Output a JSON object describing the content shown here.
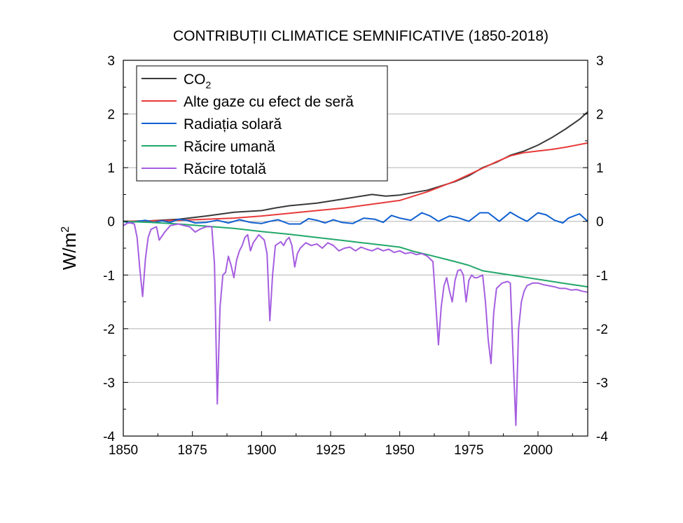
{
  "chart_data": {
    "type": "line",
    "title": "CONTRIBUȚII CLIMATICE SEMNIFICATIVE (1850-2018)",
    "xlabel": "",
    "ylabel": "W/m",
    "ylabel_sup": "2",
    "xlim": [
      1850,
      2018
    ],
    "ylim": [
      -4,
      3
    ],
    "x_ticks": [
      "1850",
      "1875",
      "1900",
      "1925",
      "1950",
      "1975",
      "2000"
    ],
    "y_ticks": [
      "-4",
      "-3",
      "-2",
      "-1",
      "0",
      "1",
      "2",
      "3"
    ],
    "grid": "horizontal",
    "legend_position": "top-left",
    "series": [
      {
        "name": "CO",
        "name_sub": "2",
        "color": "#3a3a3a",
        "points": [
          [
            1850,
            0
          ],
          [
            1860,
            0.01
          ],
          [
            1870,
            0.04
          ],
          [
            1880,
            0.1
          ],
          [
            1890,
            0.17
          ],
          [
            1900,
            0.2
          ],
          [
            1905,
            0.25
          ],
          [
            1910,
            0.29
          ],
          [
            1920,
            0.34
          ],
          [
            1930,
            0.42
          ],
          [
            1940,
            0.5
          ],
          [
            1945,
            0.47
          ],
          [
            1950,
            0.49
          ],
          [
            1960,
            0.58
          ],
          [
            1970,
            0.74
          ],
          [
            1975,
            0.85
          ],
          [
            1980,
            1.0
          ],
          [
            1985,
            1.1
          ],
          [
            1990,
            1.23
          ],
          [
            1995,
            1.31
          ],
          [
            2000,
            1.42
          ],
          [
            2005,
            1.56
          ],
          [
            2010,
            1.72
          ],
          [
            2015,
            1.9
          ],
          [
            2018,
            2.04
          ]
        ]
      },
      {
        "name": "Alte gaze cu efect de seră",
        "color": "#e83a3a",
        "points": [
          [
            1850,
            0
          ],
          [
            1870,
            0.02
          ],
          [
            1890,
            0.06
          ],
          [
            1900,
            0.1
          ],
          [
            1910,
            0.15
          ],
          [
            1920,
            0.2
          ],
          [
            1930,
            0.25
          ],
          [
            1940,
            0.32
          ],
          [
            1950,
            0.39
          ],
          [
            1960,
            0.55
          ],
          [
            1970,
            0.75
          ],
          [
            1975,
            0.87
          ],
          [
            1980,
            0.99
          ],
          [
            1985,
            1.11
          ],
          [
            1990,
            1.22
          ],
          [
            1995,
            1.28
          ],
          [
            2000,
            1.31
          ],
          [
            2005,
            1.34
          ],
          [
            2010,
            1.38
          ],
          [
            2015,
            1.43
          ],
          [
            2018,
            1.46
          ]
        ]
      },
      {
        "name": "Radiația solară",
        "color": "#1060d0",
        "points": [
          [
            1850,
            0
          ],
          [
            1852,
            -0.03
          ],
          [
            1855,
            0
          ],
          [
            1858,
            0.02
          ],
          [
            1861,
            -0.02
          ],
          [
            1864,
            0.01
          ],
          [
            1867,
            -0.02
          ],
          [
            1870,
            0.04
          ],
          [
            1873,
            0.02
          ],
          [
            1876,
            -0.03
          ],
          [
            1880,
            -0.02
          ],
          [
            1884,
            0.02
          ],
          [
            1888,
            -0.03
          ],
          [
            1892,
            0.03
          ],
          [
            1896,
            -0.02
          ],
          [
            1900,
            -0.04
          ],
          [
            1903,
            0.0
          ],
          [
            1906,
            0.03
          ],
          [
            1910,
            -0.05
          ],
          [
            1914,
            -0.05
          ],
          [
            1917,
            0.05
          ],
          [
            1920,
            0.02
          ],
          [
            1923,
            -0.03
          ],
          [
            1926,
            0.03
          ],
          [
            1929,
            -0.02
          ],
          [
            1933,
            -0.04
          ],
          [
            1937,
            0.06
          ],
          [
            1941,
            0.04
          ],
          [
            1944,
            -0.02
          ],
          [
            1947,
            0.11
          ],
          [
            1950,
            0.06
          ],
          [
            1954,
            0.02
          ],
          [
            1958,
            0.16
          ],
          [
            1961,
            0.1
          ],
          [
            1964,
            0.0
          ],
          [
            1968,
            0.1
          ],
          [
            1971,
            0.07
          ],
          [
            1975,
            0.0
          ],
          [
            1979,
            0.16
          ],
          [
            1982,
            0.16
          ],
          [
            1986,
            0.0
          ],
          [
            1990,
            0.17
          ],
          [
            1993,
            0.08
          ],
          [
            1996,
            0.0
          ],
          [
            2000,
            0.16
          ],
          [
            2003,
            0.12
          ],
          [
            2006,
            0.02
          ],
          [
            2009,
            -0.03
          ],
          [
            2011,
            0.06
          ],
          [
            2015,
            0.14
          ],
          [
            2018,
            0.0
          ]
        ]
      },
      {
        "name": "Răcire umană",
        "color": "#23a86a",
        "points": [
          [
            1850,
            0
          ],
          [
            1860,
            -0.02
          ],
          [
            1870,
            -0.05
          ],
          [
            1880,
            -0.09
          ],
          [
            1890,
            -0.13
          ],
          [
            1900,
            -0.19
          ],
          [
            1910,
            -0.24
          ],
          [
            1920,
            -0.3
          ],
          [
            1930,
            -0.36
          ],
          [
            1940,
            -0.42
          ],
          [
            1950,
            -0.48
          ],
          [
            1955,
            -0.56
          ],
          [
            1960,
            -0.62
          ],
          [
            1970,
            -0.75
          ],
          [
            1975,
            -0.82
          ],
          [
            1980,
            -0.92
          ],
          [
            1990,
            -1.0
          ],
          [
            2000,
            -1.08
          ],
          [
            2010,
            -1.16
          ],
          [
            2018,
            -1.22
          ]
        ]
      },
      {
        "name": "Răcire totală",
        "color": "#a55ee0",
        "points": [
          [
            1850,
            -0.08
          ],
          [
            1852,
            -0.02
          ],
          [
            1854,
            -0.05
          ],
          [
            1855,
            -0.3
          ],
          [
            1856,
            -0.9
          ],
          [
            1857,
            -1.4
          ],
          [
            1858,
            -0.7
          ],
          [
            1859,
            -0.3
          ],
          [
            1860,
            -0.15
          ],
          [
            1862,
            -0.1
          ],
          [
            1863,
            -0.35
          ],
          [
            1865,
            -0.2
          ],
          [
            1867,
            -0.08
          ],
          [
            1870,
            -0.05
          ],
          [
            1872,
            -0.08
          ],
          [
            1874,
            -0.1
          ],
          [
            1876,
            -0.2
          ],
          [
            1878,
            -0.14
          ],
          [
            1880,
            -0.1
          ],
          [
            1882,
            -0.1
          ],
          [
            1883,
            -0.8
          ],
          [
            1884,
            -3.4
          ],
          [
            1885,
            -1.6
          ],
          [
            1886,
            -1.0
          ],
          [
            1887,
            -0.95
          ],
          [
            1888,
            -0.65
          ],
          [
            1889,
            -0.82
          ],
          [
            1890,
            -1.05
          ],
          [
            1891,
            -0.72
          ],
          [
            1892,
            -0.55
          ],
          [
            1893,
            -0.45
          ],
          [
            1894,
            -0.3
          ],
          [
            1895,
            -0.25
          ],
          [
            1896,
            -0.55
          ],
          [
            1897,
            -0.4
          ],
          [
            1899,
            -0.25
          ],
          [
            1901,
            -0.35
          ],
          [
            1902,
            -0.6
          ],
          [
            1903,
            -1.85
          ],
          [
            1904,
            -1.0
          ],
          [
            1905,
            -0.45
          ],
          [
            1907,
            -0.38
          ],
          [
            1908,
            -0.45
          ],
          [
            1909,
            -0.35
          ],
          [
            1910,
            -0.3
          ],
          [
            1911,
            -0.45
          ],
          [
            1912,
            -0.85
          ],
          [
            1913,
            -0.6
          ],
          [
            1914,
            -0.5
          ],
          [
            1916,
            -0.4
          ],
          [
            1918,
            -0.45
          ],
          [
            1920,
            -0.42
          ],
          [
            1922,
            -0.5
          ],
          [
            1924,
            -0.4
          ],
          [
            1926,
            -0.45
          ],
          [
            1928,
            -0.55
          ],
          [
            1930,
            -0.5
          ],
          [
            1932,
            -0.48
          ],
          [
            1934,
            -0.55
          ],
          [
            1936,
            -0.48
          ],
          [
            1938,
            -0.52
          ],
          [
            1940,
            -0.55
          ],
          [
            1942,
            -0.5
          ],
          [
            1944,
            -0.55
          ],
          [
            1946,
            -0.52
          ],
          [
            1948,
            -0.58
          ],
          [
            1950,
            -0.55
          ],
          [
            1952,
            -0.6
          ],
          [
            1954,
            -0.58
          ],
          [
            1956,
            -0.62
          ],
          [
            1958,
            -0.6
          ],
          [
            1960,
            -0.65
          ],
          [
            1962,
            -0.75
          ],
          [
            1963,
            -1.5
          ],
          [
            1964,
            -2.3
          ],
          [
            1965,
            -1.6
          ],
          [
            1966,
            -1.2
          ],
          [
            1967,
            -1.05
          ],
          [
            1968,
            -1.3
          ],
          [
            1969,
            -1.5
          ],
          [
            1970,
            -1.1
          ],
          [
            1971,
            -0.92
          ],
          [
            1972,
            -0.9
          ],
          [
            1973,
            -1.0
          ],
          [
            1974,
            -1.5
          ],
          [
            1975,
            -1.1
          ],
          [
            1976,
            -1.0
          ],
          [
            1977,
            -1.05
          ],
          [
            1978,
            -1.05
          ],
          [
            1980,
            -1.0
          ],
          [
            1981,
            -1.5
          ],
          [
            1982,
            -2.2
          ],
          [
            1983,
            -2.65
          ],
          [
            1984,
            -1.7
          ],
          [
            1985,
            -1.25
          ],
          [
            1986,
            -1.2
          ],
          [
            1987,
            -1.15
          ],
          [
            1989,
            -1.12
          ],
          [
            1990,
            -1.15
          ],
          [
            1991,
            -2.5
          ],
          [
            1992,
            -3.8
          ],
          [
            1993,
            -2.0
          ],
          [
            1994,
            -1.5
          ],
          [
            1995,
            -1.3
          ],
          [
            1996,
            -1.2
          ],
          [
            1998,
            -1.15
          ],
          [
            2000,
            -1.15
          ],
          [
            2002,
            -1.18
          ],
          [
            2004,
            -1.2
          ],
          [
            2006,
            -1.22
          ],
          [
            2008,
            -1.25
          ],
          [
            2010,
            -1.25
          ],
          [
            2012,
            -1.28
          ],
          [
            2014,
            -1.27
          ],
          [
            2016,
            -1.3
          ],
          [
            2018,
            -1.32
          ]
        ]
      }
    ]
  }
}
